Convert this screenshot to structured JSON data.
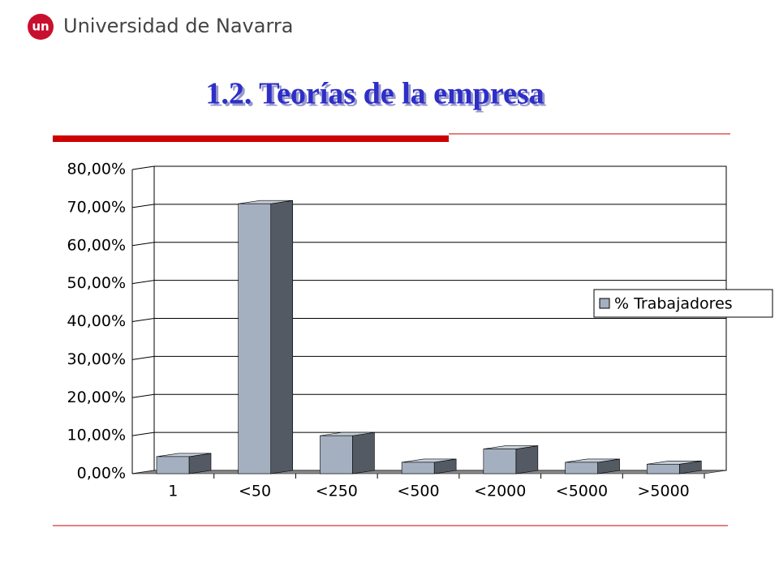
{
  "header": {
    "logo": "un",
    "name": "Universidad de Navarra"
  },
  "chart_data": {
    "type": "bar3d",
    "title": "1.2. Teorías de la empresa",
    "categories": [
      "1",
      "<50",
      "<250",
      "<500",
      "<2000",
      "<5000",
      ">5000"
    ],
    "series": [
      {
        "name": "% Trabajadores",
        "color": "#a4b0c0",
        "values": [
          4.5,
          71,
          10,
          3,
          6.5,
          3,
          2.5
        ]
      }
    ],
    "ylim": [
      0,
      80
    ],
    "yticks": [
      {
        "value": 0,
        "label": "0,00%"
      },
      {
        "value": 10,
        "label": "10,00%"
      },
      {
        "value": 20,
        "label": "20,00%"
      },
      {
        "value": 30,
        "label": "30,00%"
      },
      {
        "value": 40,
        "label": "40,00%"
      },
      {
        "value": 50,
        "label": "50,00%"
      },
      {
        "value": 60,
        "label": "60,00%"
      },
      {
        "value": 70,
        "label": "70,00%"
      },
      {
        "value": 80,
        "label": "80,00%"
      }
    ],
    "grid": true,
    "legend": "right"
  }
}
